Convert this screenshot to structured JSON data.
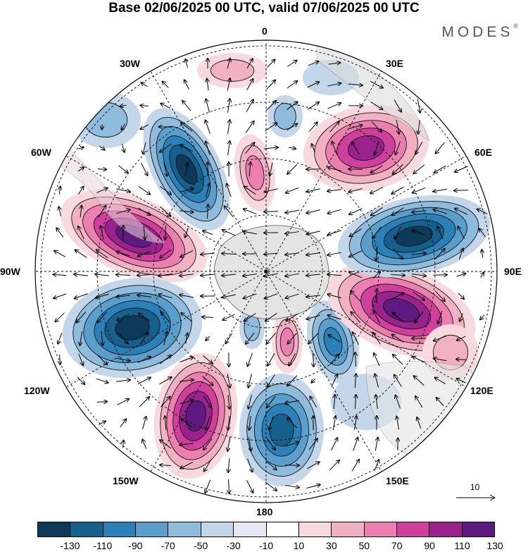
{
  "title": "Base 02/06/2025 00 UTC, valid 07/06/2025 00 UTC",
  "brand": "MODES",
  "brand_mark": "®",
  "longitude_labels": {
    "lon_0": "0",
    "lon_30e": "30E",
    "lon_60e": "60E",
    "lon_90e": "90E",
    "lon_120e": "120E",
    "lon_150e": "150E",
    "lon_180": "180",
    "lon_150w": "150W",
    "lon_120w": "120W",
    "lon_90w": "90W",
    "lon_60w": "60W",
    "lon_30w": "30W"
  },
  "reference_vector": "10",
  "colorbar": {
    "colors": [
      "#0e3a5a",
      "#16608e",
      "#2b80b8",
      "#5a9fcb",
      "#8fbcdc",
      "#c3d6ea",
      "#e6e9f3",
      "#ffffff",
      "#f8d9df",
      "#f2b0c3",
      "#ea7fb0",
      "#cf3f9c",
      "#99228c",
      "#5e1a80"
    ],
    "tick_labels": [
      "-130",
      "-110",
      "-90",
      "-70",
      "-50",
      "-30",
      "-10",
      "10",
      "30",
      "50",
      "70",
      "90",
      "110",
      "130"
    ]
  }
}
